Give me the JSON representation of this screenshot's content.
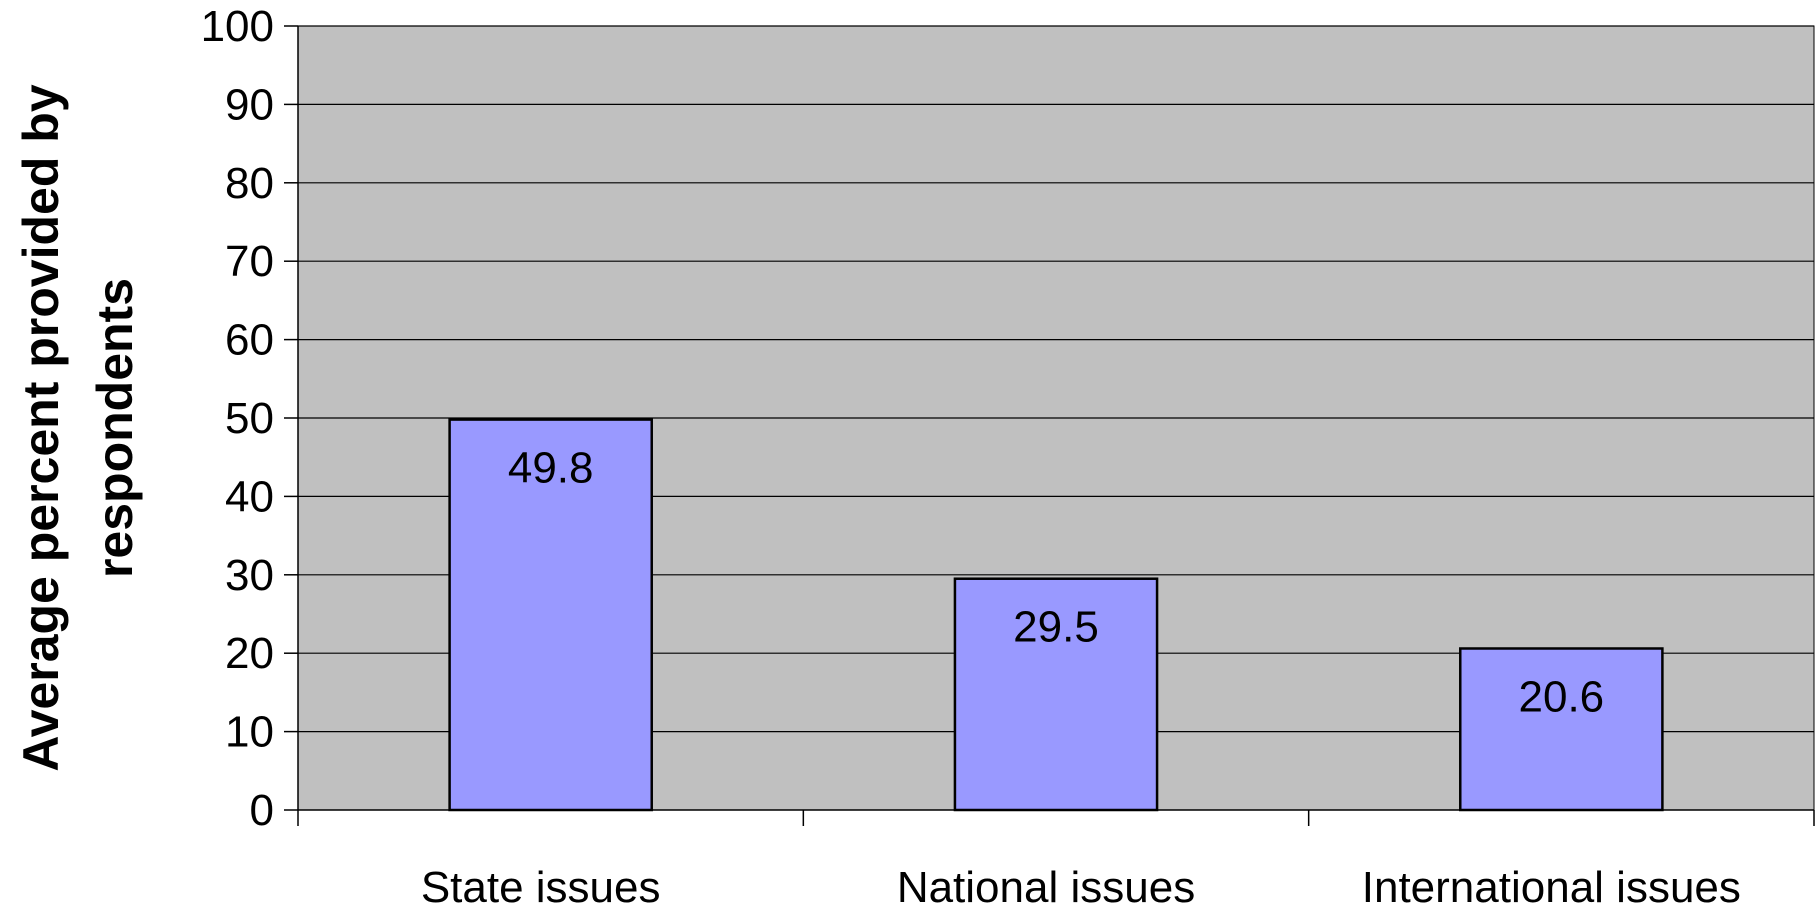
{
  "chart_data": {
    "type": "bar",
    "title": "",
    "xlabel": "",
    "ylabel_lines": [
      "Average percent provided by",
      "respondents"
    ],
    "categories": [
      "State issues",
      "National issues",
      "International issues"
    ],
    "values": [
      49.8,
      29.5,
      20.6
    ],
    "data_labels": [
      "49.8",
      "29.5",
      "20.6"
    ],
    "ylim": [
      0,
      100
    ],
    "yticks": [
      0,
      10,
      20,
      30,
      40,
      50,
      60,
      70,
      80,
      90,
      100
    ],
    "ytick_labels": [
      "0",
      "10",
      "20",
      "30",
      "40",
      "50",
      "60",
      "70",
      "80",
      "90",
      "100"
    ],
    "grid": true,
    "legend": "none",
    "colors": {
      "plot_background": "#c0c0c0",
      "bar_fill": "#9999ff",
      "bar_stroke": "#000000",
      "gridline": "#000000",
      "axis": "#000000"
    }
  }
}
